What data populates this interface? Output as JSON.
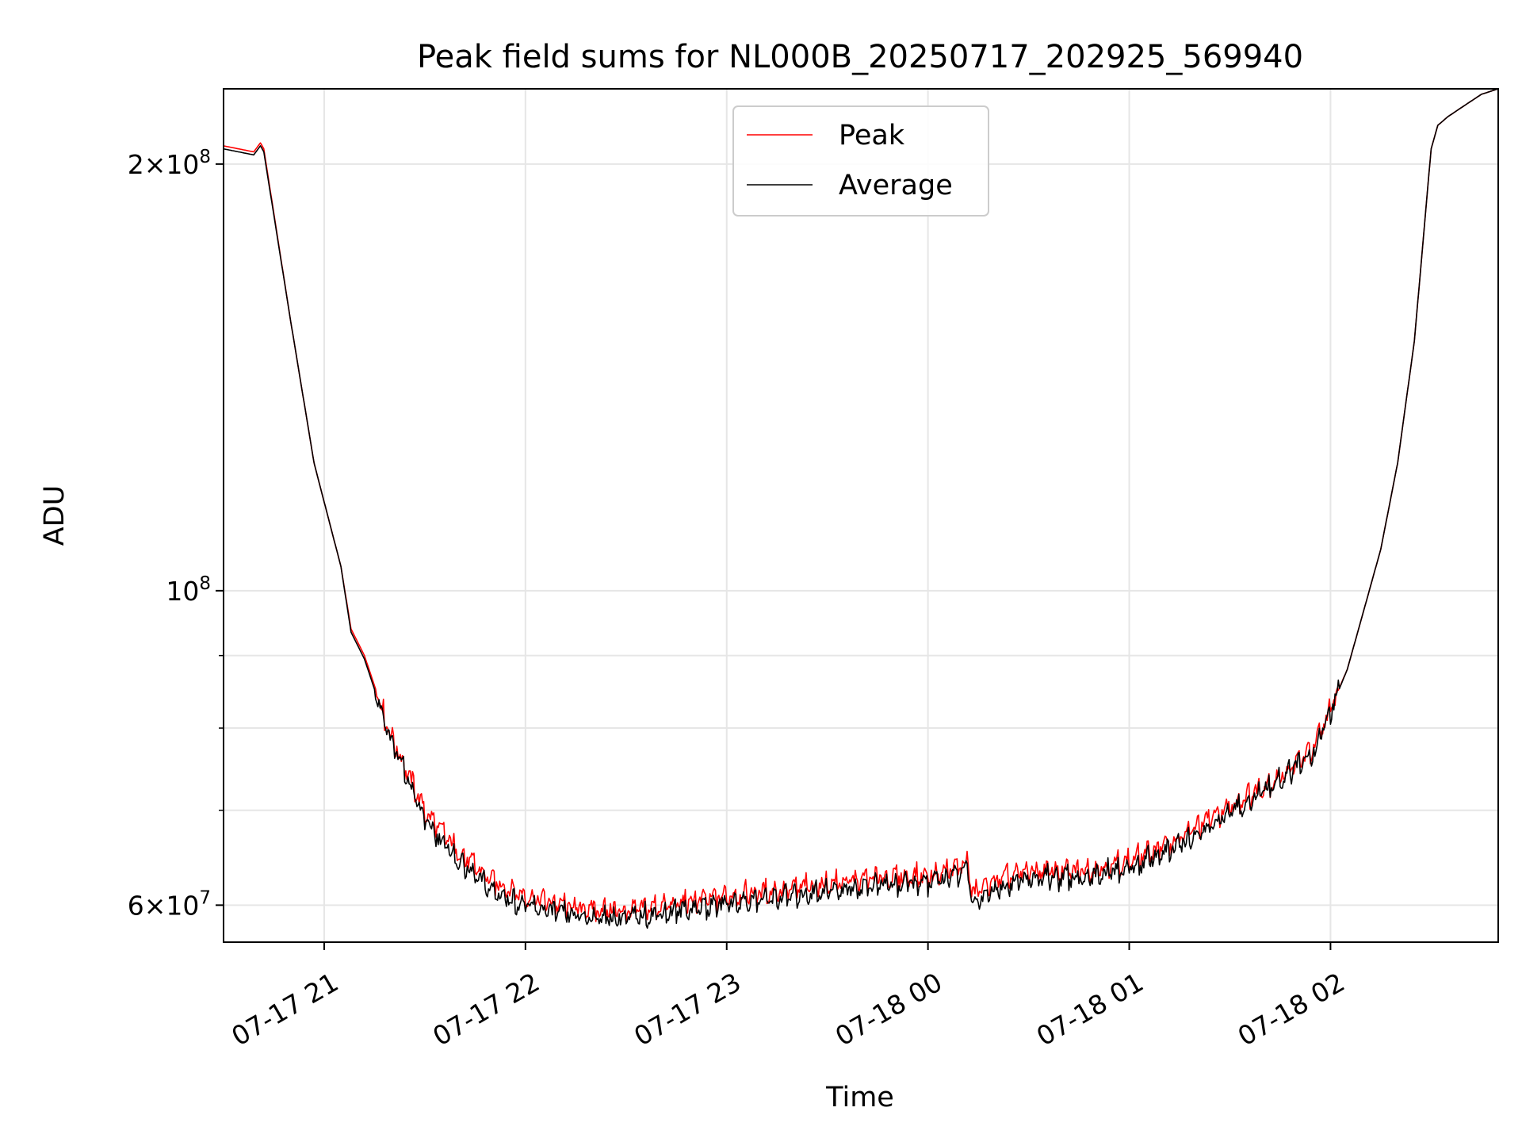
{
  "chart_data": {
    "type": "line",
    "title": "Peak field sums for NL000B_20250717_202925_569940",
    "xlabel": "Time",
    "ylabel": "ADU",
    "yscale": "log",
    "grid": true,
    "legend_position": "upper center",
    "xlim": [
      "2025-07-17 20:30",
      "2025-07-18 02:50"
    ],
    "ylim": [
      56500000,
      226000000
    ],
    "x_ticks": [
      {
        "value": "2025-07-17 21:00",
        "label": "07-17 21"
      },
      {
        "value": "2025-07-17 22:00",
        "label": "07-17 22"
      },
      {
        "value": "2025-07-17 23:00",
        "label": "07-17 23"
      },
      {
        "value": "2025-07-18 00:00",
        "label": "07-18 00"
      },
      {
        "value": "2025-07-18 01:00",
        "label": "07-18 01"
      },
      {
        "value": "2025-07-18 02:00",
        "label": "07-18 02"
      }
    ],
    "y_ticks_major": [
      {
        "value": 60000000,
        "label_mantissa": "6",
        "label_exp": "7"
      },
      {
        "value": 100000000,
        "label_mantissa": "",
        "label_exp": "8"
      },
      {
        "value": 200000000,
        "label_mantissa": "2",
        "label_exp": "8"
      }
    ],
    "y_ticks_minor": [
      70000000,
      80000000,
      90000000
    ],
    "x": [
      "2025-07-17 20:30",
      "2025-07-17 20:39",
      "2025-07-17 20:41",
      "2025-07-17 20:42",
      "2025-07-17 20:50",
      "2025-07-17 20:57",
      "2025-07-17 21:05",
      "2025-07-17 21:08",
      "2025-07-17 21:12",
      "2025-07-17 21:20",
      "2025-07-17 21:30",
      "2025-07-17 21:40",
      "2025-07-17 21:50",
      "2025-07-17 22:00",
      "2025-07-17 22:15",
      "2025-07-17 22:30",
      "2025-07-17 22:45",
      "2025-07-17 23:00",
      "2025-07-17 23:15",
      "2025-07-17 23:30",
      "2025-07-17 23:45",
      "2025-07-18 00:00",
      "2025-07-18 00:10",
      "2025-07-18 00:12",
      "2025-07-18 00:13",
      "2025-07-18 00:20",
      "2025-07-18 00:30",
      "2025-07-18 00:45",
      "2025-07-18 01:00",
      "2025-07-18 01:15",
      "2025-07-18 01:30",
      "2025-07-18 01:45",
      "2025-07-18 01:55",
      "2025-07-18 02:05",
      "2025-07-18 02:10",
      "2025-07-18 02:15",
      "2025-07-18 02:20",
      "2025-07-18 02:25",
      "2025-07-18 02:30",
      "2025-07-18 02:32",
      "2025-07-18 02:35",
      "2025-07-18 02:40",
      "2025-07-18 02:45",
      "2025-07-18 02:50"
    ],
    "series": [
      {
        "name": "Peak",
        "color": "#ff0000",
        "values": [
          206000000,
          204000000,
          207000000,
          205000000,
          155000000,
          123000000,
          104000000,
          94000000,
          90000000,
          79000000,
          70000000,
          65500000,
          62500000,
          61000000,
          59800000,
          59500000,
          60200000,
          61000000,
          61500000,
          62200000,
          62800000,
          63000000,
          64000000,
          64500000,
          61200000,
          62500000,
          63500000,
          63500000,
          64500000,
          67000000,
          70500000,
          74000000,
          77500000,
          88000000,
          97000000,
          107000000,
          123000000,
          150000000,
          205000000,
          213000000,
          216000000,
          220000000,
          224000000,
          226000000
        ]
      },
      {
        "name": "Average",
        "color": "#000000",
        "values": [
          205000000,
          203000000,
          206000000,
          204000000,
          155000000,
          123000000,
          104000000,
          93500000,
          89500000,
          78500000,
          69000000,
          64500000,
          61500000,
          60000000,
          59000000,
          58800000,
          59500000,
          60300000,
          60800000,
          61500000,
          62100000,
          62300000,
          63300000,
          63800000,
          60300000,
          61700000,
          62800000,
          62800000,
          63800000,
          66200000,
          69700000,
          73500000,
          77000000,
          88000000,
          97000000,
          107000000,
          123000000,
          150000000,
          205000000,
          213000000,
          216000000,
          220000000,
          224000000,
          226000000
        ]
      }
    ]
  }
}
